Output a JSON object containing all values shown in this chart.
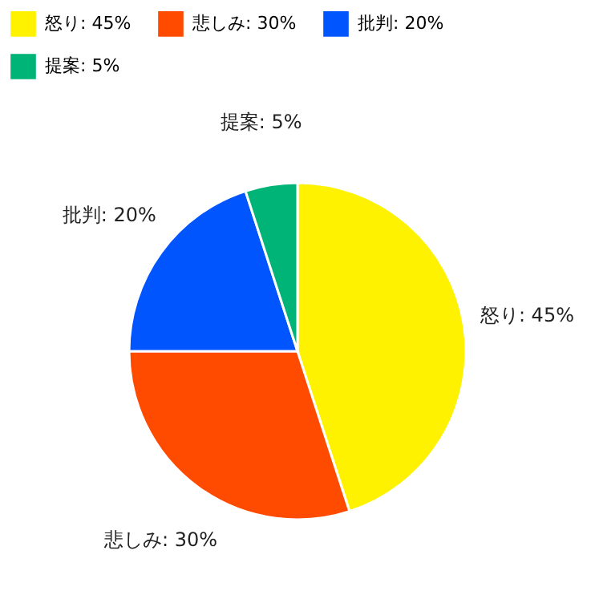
{
  "chart_data": {
    "type": "pie",
    "categories": [
      "怒り: 45%",
      "悲しみ: 30%",
      "批判: 20%",
      "提案: 5%"
    ],
    "values": [
      45,
      30,
      20,
      5
    ],
    "colors": [
      "#fff200",
      "#ff4b00",
      "#0055ff",
      "#00b377"
    ],
    "legend": "top"
  }
}
